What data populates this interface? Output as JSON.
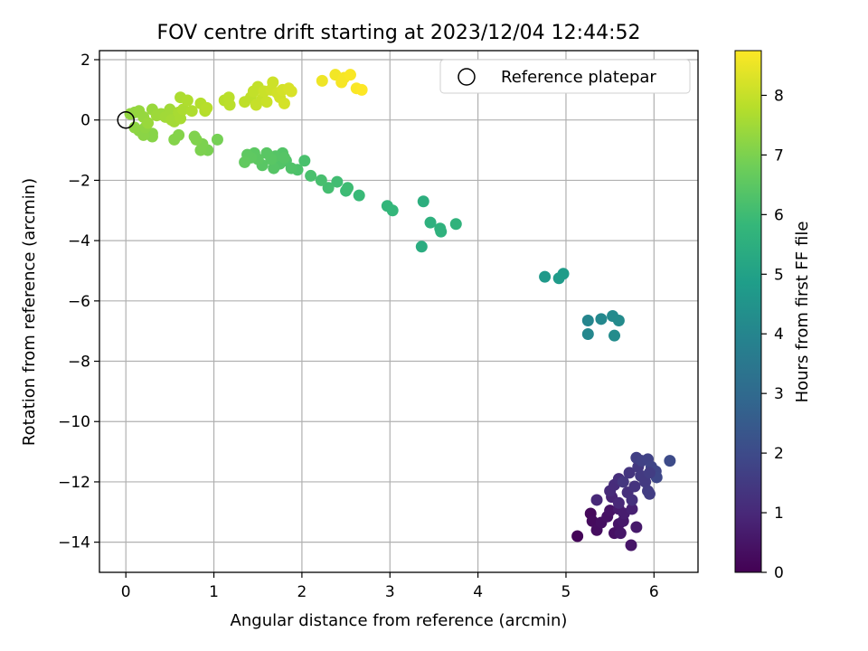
{
  "chart_data": {
    "type": "scatter",
    "title": "FOV centre drift starting at 2023/12/04 12:44:52",
    "xlabel": "Angular distance from reference (arcmin)",
    "ylabel": "Rotation from reference (arcmin)",
    "xlim": [
      -0.3,
      6.5
    ],
    "ylim": [
      -15,
      2.3
    ],
    "xticks": [
      0,
      1,
      2,
      3,
      4,
      5,
      6
    ],
    "yticks": [
      2,
      0,
      -2,
      -4,
      -6,
      -8,
      -10,
      -12,
      -14
    ],
    "grid": true,
    "legend": {
      "placement": "top-right",
      "entries": [
        "Reference platepar"
      ]
    },
    "reference_point": {
      "x": 0,
      "y": 0
    },
    "colorbar": {
      "label": "Hours from first FF file",
      "range": [
        0,
        8.75
      ],
      "ticks": [
        0,
        1,
        2,
        3,
        4,
        5,
        6,
        7,
        8
      ],
      "colormap": "viridis",
      "stops": [
        "#440154",
        "#482878",
        "#3e4989",
        "#31688e",
        "#26828e",
        "#1f9e89",
        "#35b779",
        "#6ece58",
        "#b5de2b",
        "#fde725"
      ]
    },
    "points": [
      {
        "x": 5.13,
        "y": -13.8,
        "h": 0.1
      },
      {
        "x": 5.28,
        "y": -13.05,
        "h": 0.2
      },
      {
        "x": 5.3,
        "y": -13.3,
        "h": 0.25
      },
      {
        "x": 5.35,
        "y": -13.6,
        "h": 0.3
      },
      {
        "x": 5.4,
        "y": -13.35,
        "h": 0.35
      },
      {
        "x": 5.47,
        "y": -13.15,
        "h": 0.4
      },
      {
        "x": 5.5,
        "y": -12.95,
        "h": 0.45
      },
      {
        "x": 5.55,
        "y": -13.7,
        "h": 0.4
      },
      {
        "x": 5.6,
        "y": -13.4,
        "h": 0.5
      },
      {
        "x": 5.62,
        "y": -13.7,
        "h": 0.55
      },
      {
        "x": 5.65,
        "y": -13.3,
        "h": 0.6
      },
      {
        "x": 5.6,
        "y": -12.9,
        "h": 0.65
      },
      {
        "x": 5.66,
        "y": -13.05,
        "h": 0.7
      },
      {
        "x": 5.74,
        "y": -14.1,
        "h": 0.5
      },
      {
        "x": 5.8,
        "y": -13.5,
        "h": 0.6
      },
      {
        "x": 5.75,
        "y": -12.9,
        "h": 0.8
      },
      {
        "x": 5.52,
        "y": -12.5,
        "h": 0.9
      },
      {
        "x": 5.6,
        "y": -12.7,
        "h": 1.0
      },
      {
        "x": 5.35,
        "y": -12.6,
        "h": 1.0
      },
      {
        "x": 5.5,
        "y": -12.3,
        "h": 1.05
      },
      {
        "x": 5.55,
        "y": -12.1,
        "h": 1.1
      },
      {
        "x": 5.6,
        "y": -11.9,
        "h": 1.15
      },
      {
        "x": 5.7,
        "y": -12.35,
        "h": 1.2
      },
      {
        "x": 5.75,
        "y": -12.6,
        "h": 1.25
      },
      {
        "x": 5.78,
        "y": -12.15,
        "h": 1.3
      },
      {
        "x": 5.72,
        "y": -11.7,
        "h": 1.35
      },
      {
        "x": 5.65,
        "y": -12.0,
        "h": 1.4
      },
      {
        "x": 5.82,
        "y": -11.5,
        "h": 1.45
      },
      {
        "x": 5.85,
        "y": -11.8,
        "h": 1.5
      },
      {
        "x": 5.9,
        "y": -12.0,
        "h": 1.5
      },
      {
        "x": 5.93,
        "y": -12.3,
        "h": 1.55
      },
      {
        "x": 5.95,
        "y": -12.4,
        "h": 1.6
      },
      {
        "x": 5.8,
        "y": -11.2,
        "h": 1.65
      },
      {
        "x": 5.86,
        "y": -11.3,
        "h": 1.7
      },
      {
        "x": 5.93,
        "y": -11.25,
        "h": 1.75
      },
      {
        "x": 5.97,
        "y": -11.5,
        "h": 1.8
      },
      {
        "x": 6.02,
        "y": -11.65,
        "h": 1.85
      },
      {
        "x": 6.03,
        "y": -11.85,
        "h": 1.9
      },
      {
        "x": 6.18,
        "y": -11.3,
        "h": 2.0
      },
      {
        "x": 5.95,
        "y": -11.7,
        "h": 1.6
      },
      {
        "x": 5.25,
        "y": -6.65,
        "h": 4.0
      },
      {
        "x": 5.25,
        "y": -7.1,
        "h": 4.05
      },
      {
        "x": 5.4,
        "y": -6.6,
        "h": 4.1
      },
      {
        "x": 5.53,
        "y": -6.5,
        "h": 4.15
      },
      {
        "x": 5.6,
        "y": -6.65,
        "h": 4.2
      },
      {
        "x": 5.55,
        "y": -7.15,
        "h": 4.25
      },
      {
        "x": 4.76,
        "y": -5.2,
        "h": 4.7
      },
      {
        "x": 4.92,
        "y": -5.25,
        "h": 4.75
      },
      {
        "x": 4.97,
        "y": -5.1,
        "h": 4.8
      },
      {
        "x": 3.36,
        "y": -4.2,
        "h": 5.4
      },
      {
        "x": 3.38,
        "y": -2.7,
        "h": 5.5
      },
      {
        "x": 3.46,
        "y": -3.4,
        "h": 5.55
      },
      {
        "x": 3.57,
        "y": -3.6,
        "h": 5.6
      },
      {
        "x": 3.58,
        "y": -3.7,
        "h": 5.6
      },
      {
        "x": 3.75,
        "y": -3.45,
        "h": 5.65
      },
      {
        "x": 2.97,
        "y": -2.85,
        "h": 5.75
      },
      {
        "x": 3.03,
        "y": -3.0,
        "h": 5.8
      },
      {
        "x": 2.65,
        "y": -2.5,
        "h": 5.9
      },
      {
        "x": 2.5,
        "y": -2.35,
        "h": 5.95
      },
      {
        "x": 2.52,
        "y": -2.25,
        "h": 6.0
      },
      {
        "x": 2.4,
        "y": -2.05,
        "h": 6.05
      },
      {
        "x": 2.3,
        "y": -2.25,
        "h": 6.1
      },
      {
        "x": 2.22,
        "y": -2.0,
        "h": 6.15
      },
      {
        "x": 2.1,
        "y": -1.85,
        "h": 6.2
      },
      {
        "x": 2.03,
        "y": -1.35,
        "h": 6.2
      },
      {
        "x": 1.95,
        "y": -1.65,
        "h": 6.25
      },
      {
        "x": 1.88,
        "y": -1.6,
        "h": 6.3
      },
      {
        "x": 1.82,
        "y": -1.35,
        "h": 6.3
      },
      {
        "x": 1.78,
        "y": -1.1,
        "h": 6.35
      },
      {
        "x": 1.75,
        "y": -1.45,
        "h": 6.35
      },
      {
        "x": 1.7,
        "y": -1.2,
        "h": 6.4
      },
      {
        "x": 1.68,
        "y": -1.6,
        "h": 6.4
      },
      {
        "x": 1.6,
        "y": -1.1,
        "h": 6.45
      },
      {
        "x": 1.55,
        "y": -1.5,
        "h": 6.45
      },
      {
        "x": 1.5,
        "y": -1.3,
        "h": 6.5
      },
      {
        "x": 1.46,
        "y": -1.1,
        "h": 6.5
      },
      {
        "x": 1.42,
        "y": -1.25,
        "h": 6.55
      },
      {
        "x": 1.38,
        "y": -1.15,
        "h": 6.55
      },
      {
        "x": 1.35,
        "y": -1.4,
        "h": 6.6
      },
      {
        "x": 1.8,
        "y": -1.25,
        "h": 6.4
      },
      {
        "x": 1.65,
        "y": -1.3,
        "h": 6.45
      },
      {
        "x": 1.04,
        "y": -0.65,
        "h": 6.9
      },
      {
        "x": 0.93,
        "y": -1.0,
        "h": 6.95
      },
      {
        "x": 0.87,
        "y": -0.8,
        "h": 7.0
      },
      {
        "x": 0.85,
        "y": -1.0,
        "h": 7.0
      },
      {
        "x": 0.8,
        "y": -0.65,
        "h": 7.05
      },
      {
        "x": 0.78,
        "y": -0.55,
        "h": 7.05
      },
      {
        "x": 0.55,
        "y": -0.65,
        "h": 7.1
      },
      {
        "x": 0.6,
        "y": -0.5,
        "h": 7.1
      },
      {
        "x": 0.3,
        "y": -0.45,
        "h": 7.15
      },
      {
        "x": 0.3,
        "y": -0.55,
        "h": 7.15
      },
      {
        "x": 0.2,
        "y": -0.5,
        "h": 7.2
      },
      {
        "x": 0.15,
        "y": -0.35,
        "h": 7.2
      },
      {
        "x": 0.1,
        "y": -0.25,
        "h": 7.25
      },
      {
        "x": 0.22,
        "y": -0.25,
        "h": 7.25
      },
      {
        "x": 0.05,
        "y": 0.2,
        "h": 7.3
      },
      {
        "x": 0.1,
        "y": 0.25,
        "h": 7.3
      },
      {
        "x": 0.15,
        "y": 0.3,
        "h": 7.35
      },
      {
        "x": 0.2,
        "y": 0.1,
        "h": 7.35
      },
      {
        "x": 0.25,
        "y": -0.1,
        "h": 7.4
      },
      {
        "x": 0.3,
        "y": 0.35,
        "h": 7.4
      },
      {
        "x": 0.35,
        "y": 0.15,
        "h": 7.45
      },
      {
        "x": 0.4,
        "y": 0.2,
        "h": 7.45
      },
      {
        "x": 0.45,
        "y": 0.1,
        "h": 7.5
      },
      {
        "x": 0.5,
        "y": 0.35,
        "h": 7.5
      },
      {
        "x": 0.52,
        "y": 0.0,
        "h": 7.55
      },
      {
        "x": 0.55,
        "y": -0.05,
        "h": 7.55
      },
      {
        "x": 0.6,
        "y": 0.25,
        "h": 7.6
      },
      {
        "x": 0.62,
        "y": 0.05,
        "h": 7.6
      },
      {
        "x": 0.65,
        "y": 0.35,
        "h": 7.65
      },
      {
        "x": 0.62,
        "y": 0.75,
        "h": 7.65
      },
      {
        "x": 0.7,
        "y": 0.65,
        "h": 7.7
      },
      {
        "x": 0.75,
        "y": 0.3,
        "h": 7.7
      },
      {
        "x": 0.85,
        "y": 0.55,
        "h": 7.75
      },
      {
        "x": 0.9,
        "y": 0.3,
        "h": 7.75
      },
      {
        "x": 0.92,
        "y": 0.4,
        "h": 7.8
      },
      {
        "x": 1.12,
        "y": 0.65,
        "h": 7.8
      },
      {
        "x": 1.17,
        "y": 0.75,
        "h": 7.85
      },
      {
        "x": 1.18,
        "y": 0.5,
        "h": 7.85
      },
      {
        "x": 1.35,
        "y": 0.6,
        "h": 7.9
      },
      {
        "x": 1.42,
        "y": 0.75,
        "h": 7.9
      },
      {
        "x": 1.45,
        "y": 0.95,
        "h": 7.95
      },
      {
        "x": 1.5,
        "y": 1.1,
        "h": 7.95
      },
      {
        "x": 1.48,
        "y": 0.5,
        "h": 8.0
      },
      {
        "x": 1.55,
        "y": 0.7,
        "h": 8.0
      },
      {
        "x": 1.57,
        "y": 0.95,
        "h": 8.05
      },
      {
        "x": 1.6,
        "y": 0.6,
        "h": 8.05
      },
      {
        "x": 1.65,
        "y": 1.0,
        "h": 8.1
      },
      {
        "x": 1.67,
        "y": 1.25,
        "h": 8.1
      },
      {
        "x": 1.72,
        "y": 0.9,
        "h": 8.15
      },
      {
        "x": 1.75,
        "y": 0.75,
        "h": 8.15
      },
      {
        "x": 1.78,
        "y": 1.0,
        "h": 8.2
      },
      {
        "x": 1.8,
        "y": 0.55,
        "h": 8.2
      },
      {
        "x": 1.85,
        "y": 1.05,
        "h": 8.25
      },
      {
        "x": 1.88,
        "y": 0.95,
        "h": 8.25
      },
      {
        "x": 2.23,
        "y": 1.3,
        "h": 8.55
      },
      {
        "x": 2.38,
        "y": 1.5,
        "h": 8.6
      },
      {
        "x": 2.45,
        "y": 1.25,
        "h": 8.65
      },
      {
        "x": 2.48,
        "y": 1.4,
        "h": 8.65
      },
      {
        "x": 2.55,
        "y": 1.5,
        "h": 8.7
      },
      {
        "x": 2.62,
        "y": 1.05,
        "h": 8.7
      },
      {
        "x": 2.68,
        "y": 1.0,
        "h": 8.75
      }
    ]
  }
}
